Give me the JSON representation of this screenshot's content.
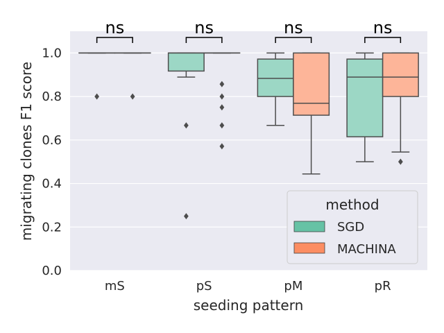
{
  "chart_data": {
    "type": "box",
    "xlabel": "seeding pattern",
    "ylabel": "migrating clones F1 score",
    "ylim": [
      0.0,
      1.1
    ],
    "yticks": [
      "0.0",
      "0.2",
      "0.4",
      "0.6",
      "0.8",
      "1.0"
    ],
    "categories": [
      "mS",
      "pS",
      "pM",
      "pR"
    ],
    "grid": true,
    "legend": {
      "title": "method",
      "placement": "lower-right"
    },
    "series": [
      {
        "name": "SGD",
        "color": "#66c2a5",
        "boxes": [
          {
            "category": "mS",
            "q1": 1.0,
            "median": 1.0,
            "q3": 1.0,
            "whisker_low": 1.0,
            "whisker_high": 1.0,
            "outliers": [
              0.8
            ]
          },
          {
            "category": "pS",
            "q1": 0.917,
            "median": 1.0,
            "q3": 1.0,
            "whisker_low": 0.889,
            "whisker_high": 1.0,
            "outliers": [
              0.667,
              0.25
            ]
          },
          {
            "category": "pM",
            "q1": 0.8,
            "median": 0.883,
            "q3": 0.972,
            "whisker_low": 0.667,
            "whisker_high": 1.0,
            "outliers": []
          },
          {
            "category": "pR",
            "q1": 0.615,
            "median": 0.889,
            "q3": 0.972,
            "whisker_low": 0.5,
            "whisker_high": 1.0,
            "outliers": []
          }
        ]
      },
      {
        "name": "MACHINA",
        "color": "#fc8d62",
        "boxes": [
          {
            "category": "mS",
            "q1": 1.0,
            "median": 1.0,
            "q3": 1.0,
            "whisker_low": 1.0,
            "whisker_high": 1.0,
            "outliers": [
              0.8
            ]
          },
          {
            "category": "pS",
            "q1": 1.0,
            "median": 1.0,
            "q3": 1.0,
            "whisker_low": 1.0,
            "whisker_high": 1.0,
            "outliers": [
              0.857,
              0.8,
              0.75,
              0.667,
              0.571
            ]
          },
          {
            "category": "pM",
            "q1": 0.714,
            "median": 0.769,
            "q3": 1.0,
            "whisker_low": 0.444,
            "whisker_high": 1.0,
            "outliers": []
          },
          {
            "category": "pR",
            "q1": 0.8,
            "median": 0.889,
            "q3": 1.0,
            "whisker_low": 0.545,
            "whisker_high": 1.0,
            "outliers": [
              0.5
            ]
          }
        ]
      }
    ],
    "annotations": [
      {
        "category": "mS",
        "text": "ns"
      },
      {
        "category": "pS",
        "text": "ns"
      },
      {
        "category": "pM",
        "text": "ns"
      },
      {
        "category": "pR",
        "text": "ns"
      }
    ]
  }
}
